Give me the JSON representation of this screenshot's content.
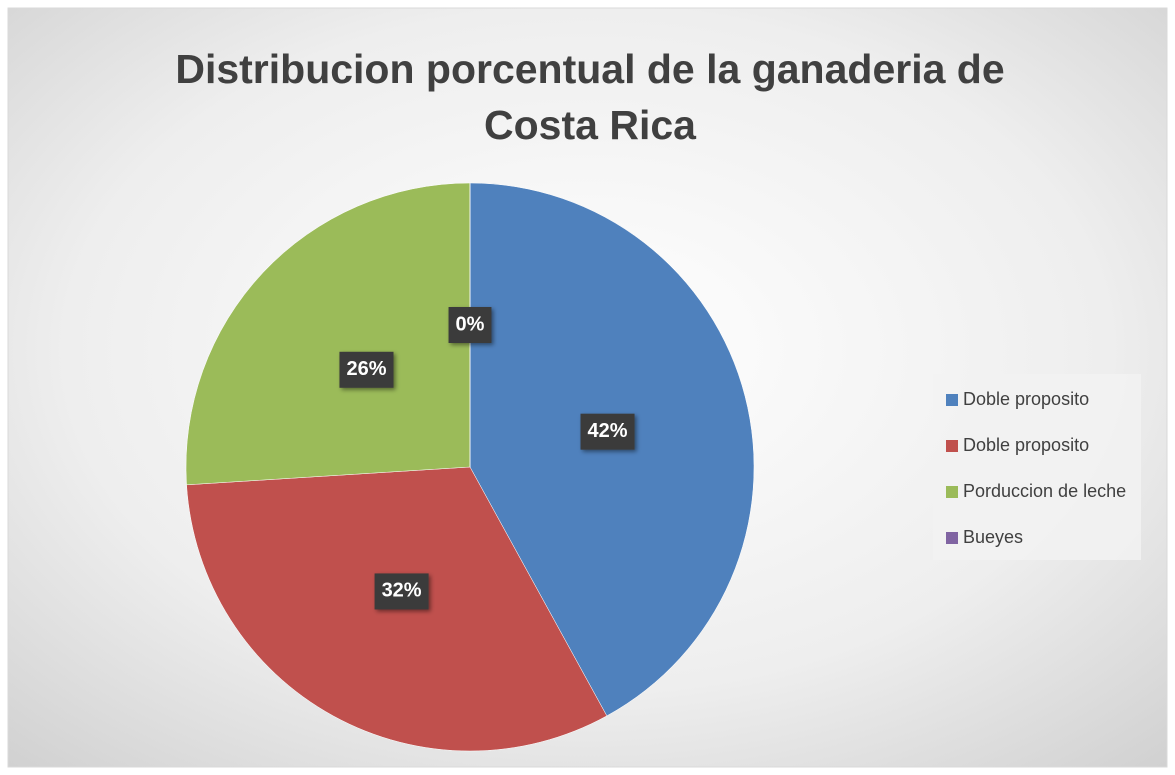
{
  "chart_data": {
    "type": "pie",
    "title": "Distribucion porcentual de la ganaderia de Costa Rica",
    "categories": [
      "Doble proposito",
      "Doble proposito",
      "Porduccion de leche",
      "Bueyes"
    ],
    "values": [
      42,
      32,
      26,
      0
    ],
    "value_labels": [
      "42%",
      "32%",
      "26%",
      "0%"
    ],
    "colors": [
      "#4f81bd",
      "#c0504d",
      "#9bbb59",
      "#8064a2"
    ],
    "legend": "right"
  }
}
